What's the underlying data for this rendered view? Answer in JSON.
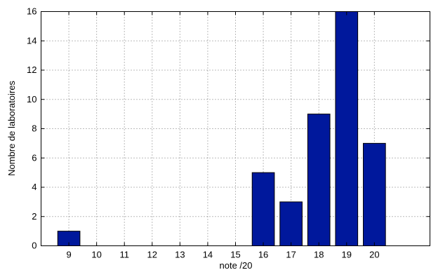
{
  "chart_data": {
    "type": "bar",
    "categories": [
      "9",
      "10",
      "11",
      "12",
      "13",
      "14",
      "15",
      "16",
      "17",
      "18",
      "19",
      "20"
    ],
    "values": [
      1,
      0,
      0,
      0,
      0,
      0,
      0,
      5,
      3,
      9,
      16,
      7
    ],
    "xlabel": "note /20",
    "ylabel": "Nombre de laboratoires",
    "xlim": [
      8,
      22
    ],
    "ylim": [
      0,
      16
    ],
    "yticks": [
      0,
      2,
      4,
      6,
      8,
      10,
      12,
      14,
      16
    ],
    "grid": true,
    "bar_color": "#00189c"
  }
}
